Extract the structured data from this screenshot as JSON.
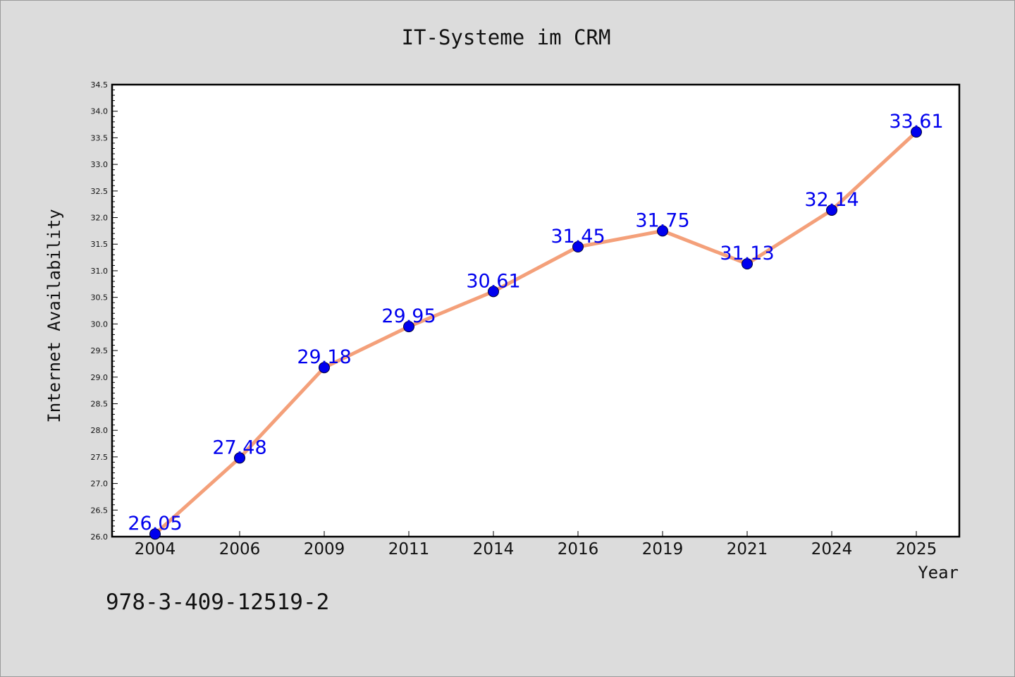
{
  "chart_data": {
    "type": "line",
    "title": "IT-Systeme im CRM",
    "xlabel": "Year",
    "ylabel": "Internet Availability",
    "categories": [
      "2004",
      "2006",
      "2009",
      "2011",
      "2014",
      "2016",
      "2019",
      "2021",
      "2024",
      "2025"
    ],
    "values": [
      26.05,
      27.48,
      29.18,
      29.95,
      30.61,
      31.45,
      31.75,
      31.13,
      32.14,
      33.61
    ],
    "data_labels": [
      "26.05",
      "27.48",
      "29.18",
      "29.95",
      "30.61",
      "31.45",
      "31.75",
      "31.13",
      "32.14",
      "33.61"
    ],
    "ylim": [
      26.0,
      34.5
    ],
    "yticks": [
      "26.0",
      "26.5",
      "27.0",
      "27.5",
      "28.0",
      "28.5",
      "29.0",
      "29.5",
      "30.0",
      "30.5",
      "31.0",
      "31.5",
      "32.0",
      "32.5",
      "33.0",
      "33.5",
      "34.0",
      "34.5"
    ],
    "grid": false,
    "line_color": "#f4a07a",
    "marker_color": "#0000ee",
    "label_color": "#0000ee"
  },
  "footer_text": "978-3-409-12519-2"
}
